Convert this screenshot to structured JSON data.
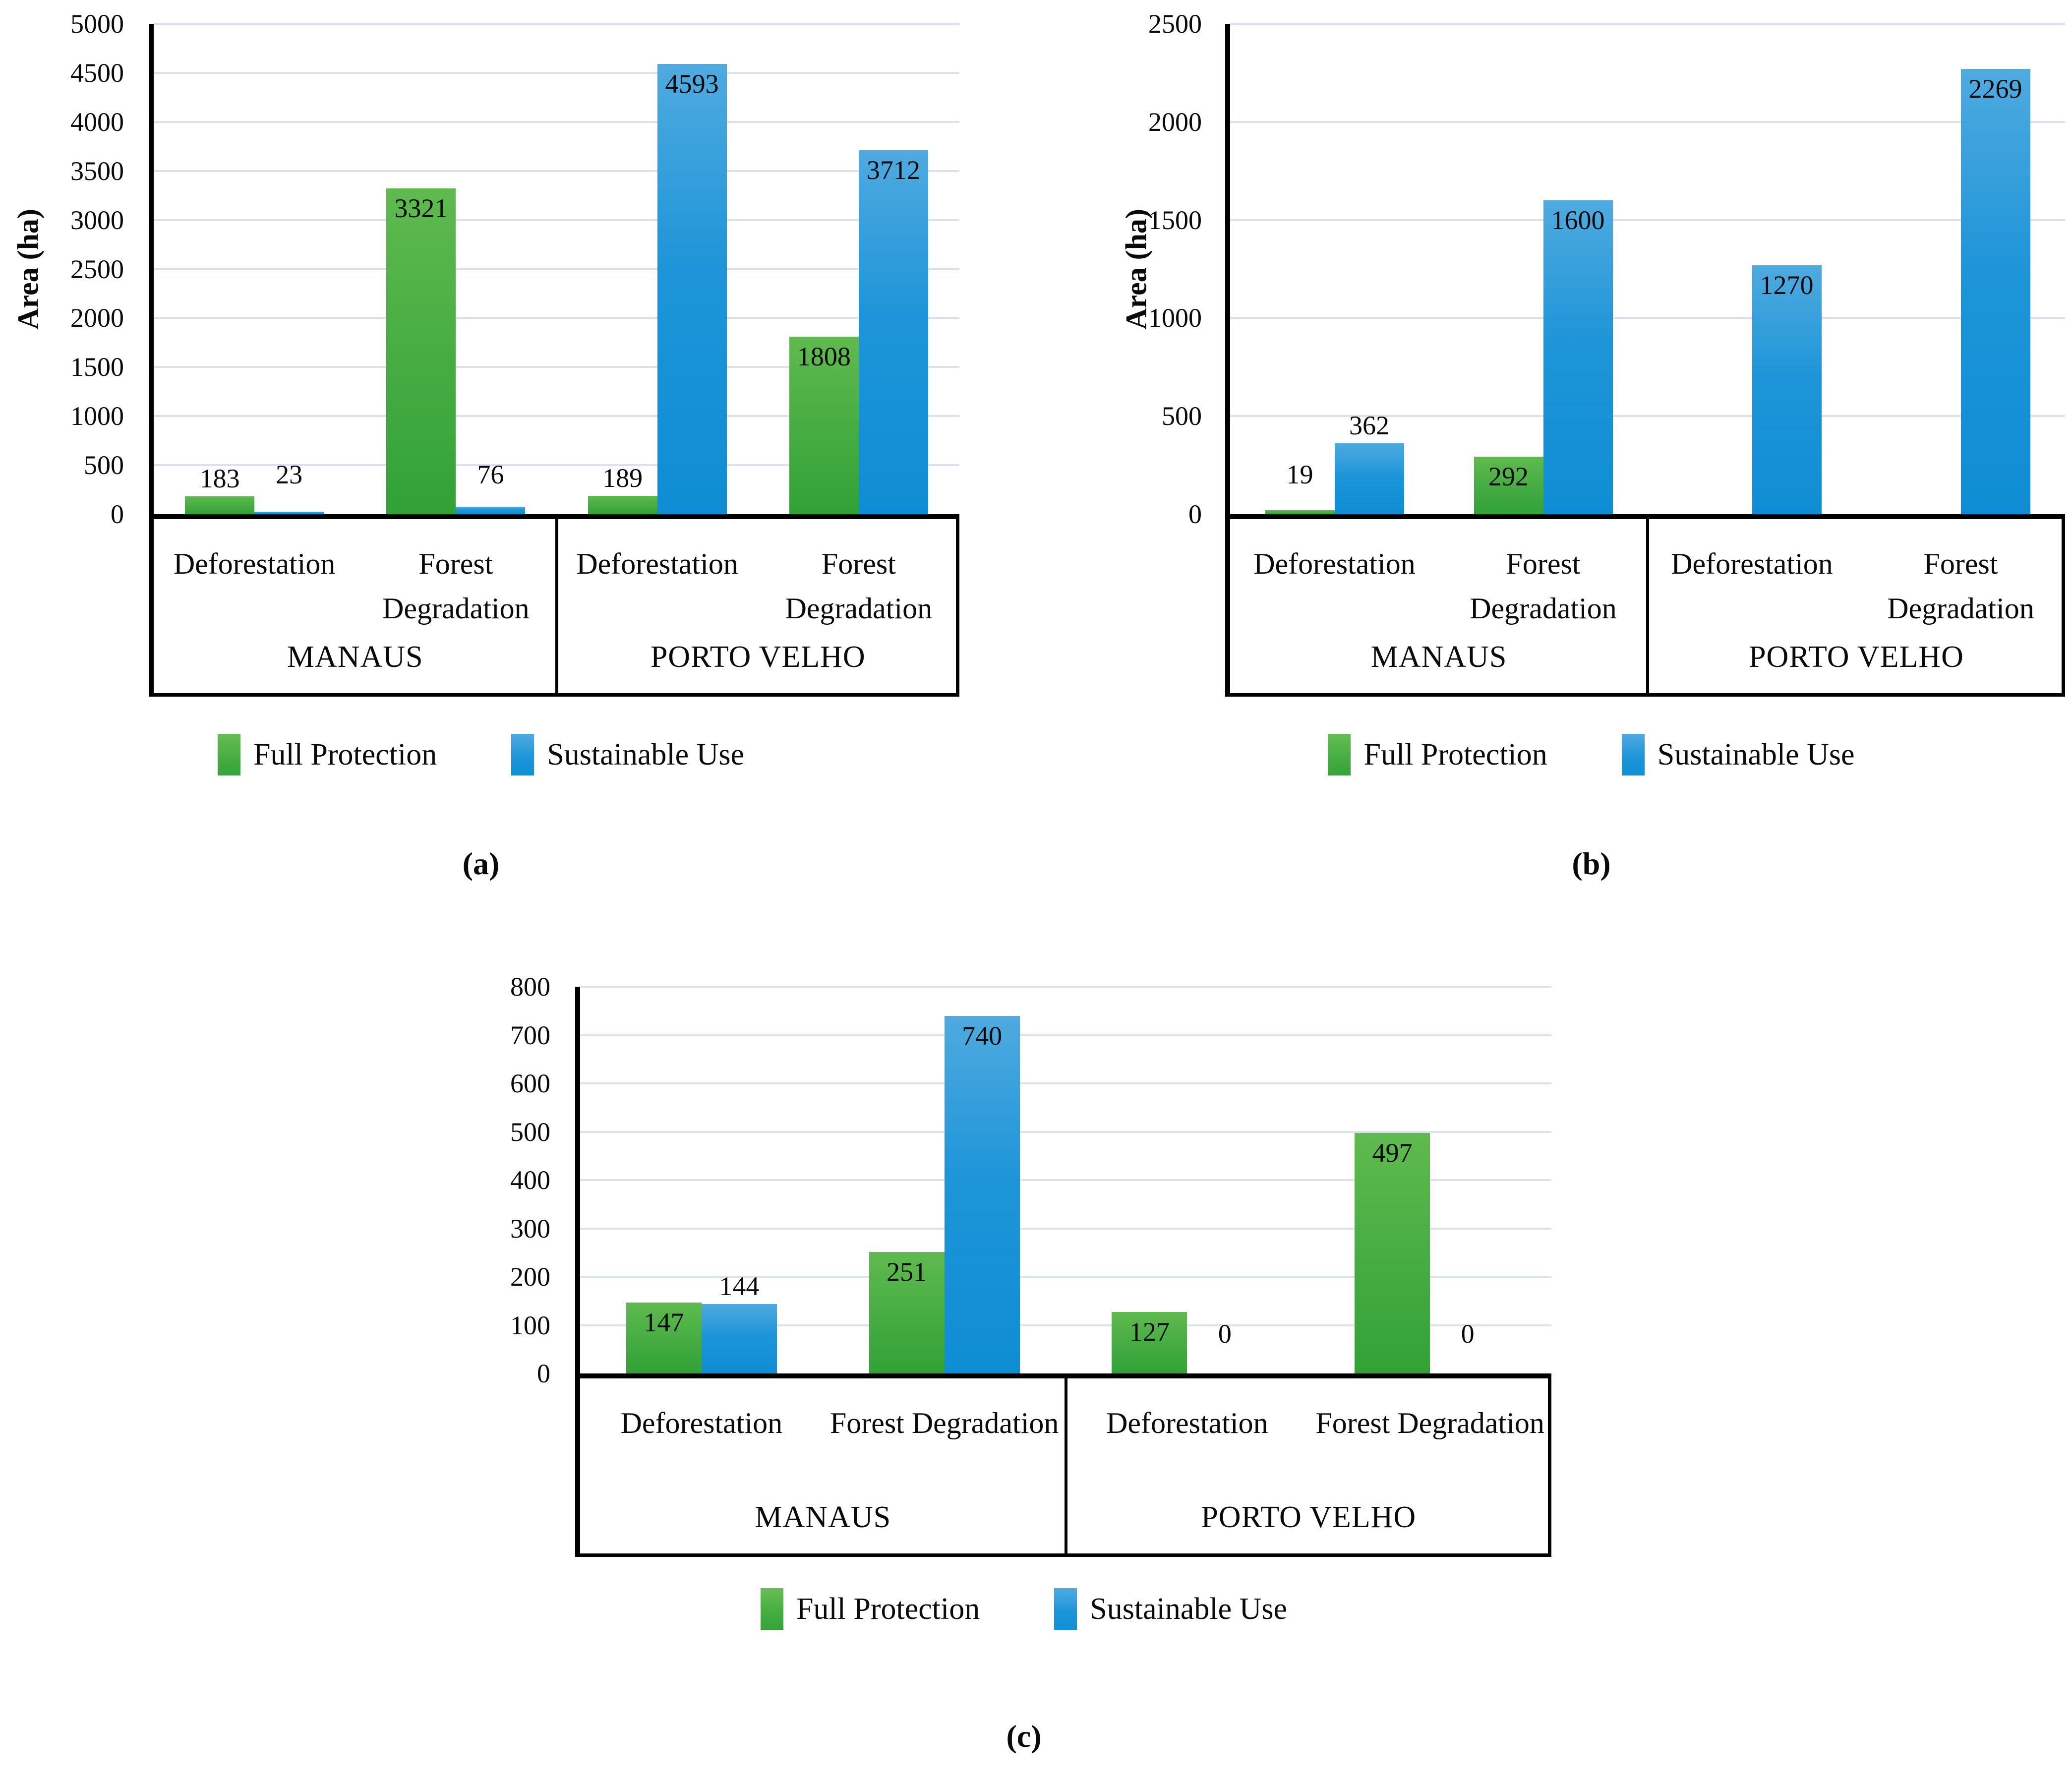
{
  "legend": {
    "full_protection": "Full Protection",
    "sustainable_use": "Sustainable Use"
  },
  "colors": {
    "green_top": "#5FBA4E",
    "green_bottom": "#31A236",
    "blue_top": "#4FAADF",
    "blue_bottom": "#0F8DD4",
    "gridline": "#DCE2EB",
    "axis": "#000000",
    "text": "#0a0a0a"
  },
  "chart_data": [
    {
      "id": "a",
      "type": "bar",
      "caption": "(a)",
      "title": "",
      "xlabel": "",
      "ylabel": "Area (ha)",
      "ylim": [
        0,
        5000
      ],
      "ytick_step": 500,
      "grid": true,
      "legend_position": "bottom",
      "groups": [
        {
          "name": "MANAUS",
          "categories": [
            "Deforestation",
            "Forest Degradation"
          ]
        },
        {
          "name": "PORTO VELHO",
          "categories": [
            "Deforestation",
            "Forest Degradation"
          ]
        }
      ],
      "series": [
        {
          "name": "Full Protection",
          "color": "green",
          "values": [
            183,
            3321,
            189,
            1808
          ],
          "label_pos": [
            "above",
            "inside",
            "above",
            "inside"
          ]
        },
        {
          "name": "Sustainable Use",
          "color": "blue",
          "values": [
            23,
            76,
            4593,
            3712
          ],
          "label_pos": [
            "low",
            "low",
            "inside",
            "inside"
          ]
        }
      ]
    },
    {
      "id": "b",
      "type": "bar",
      "caption": "(b)",
      "title": "",
      "xlabel": "",
      "ylabel": "Area (ha)",
      "ylim": [
        0,
        2500
      ],
      "ytick_step": 500,
      "grid": true,
      "legend_position": "bottom",
      "groups": [
        {
          "name": "MANAUS",
          "categories": [
            "Deforestation",
            "Forest Degradation"
          ]
        },
        {
          "name": "PORTO VELHO",
          "categories": [
            "Deforestation",
            "Forest Degradation"
          ]
        }
      ],
      "series": [
        {
          "name": "Full Protection",
          "color": "green",
          "values": [
            19,
            292,
            null,
            null
          ],
          "label_pos": [
            "low",
            "inside",
            null,
            null
          ]
        },
        {
          "name": "Sustainable Use",
          "color": "blue",
          "values": [
            362,
            1600,
            1270,
            2269
          ],
          "label_pos": [
            "above",
            "inside",
            "inside",
            "inside"
          ]
        }
      ]
    },
    {
      "id": "c",
      "type": "bar",
      "caption": "(c)",
      "title": "",
      "xlabel": "",
      "ylabel": "",
      "ylim": [
        0,
        800
      ],
      "ytick_step": 100,
      "grid": true,
      "legend_position": "bottom",
      "groups": [
        {
          "name": "MANAUS",
          "categories": [
            "Deforestation",
            "Forest Degradation"
          ]
        },
        {
          "name": "PORTO VELHO",
          "categories": [
            "Deforestation",
            "Forest Degradation"
          ]
        }
      ],
      "series": [
        {
          "name": "Full Protection",
          "color": "green",
          "values": [
            147,
            251,
            127,
            497
          ],
          "label_pos": [
            "inside",
            "inside",
            "inside",
            "inside"
          ]
        },
        {
          "name": "Sustainable Use",
          "color": "blue",
          "values": [
            144,
            740,
            0,
            0
          ],
          "label_pos": [
            "above",
            "inside",
            "low",
            "low"
          ]
        }
      ]
    }
  ]
}
